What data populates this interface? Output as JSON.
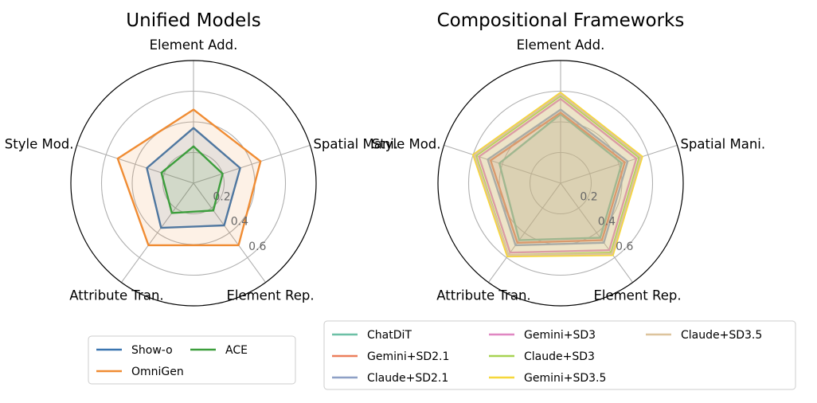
{
  "chart_data": [
    {
      "type": "radar",
      "title": "Unified Models",
      "axes": [
        "Element Add.",
        "Spatial Mani.",
        "Element Rep.",
        "Attribute Tran.",
        "Style Mod."
      ],
      "rlim": [
        0,
        0.8
      ],
      "rticks": [
        0.2,
        0.4,
        0.6
      ],
      "rtick_labels": [
        "0.2",
        "0.4",
        "0.6"
      ],
      "grid": true,
      "legend_position": "bottom",
      "series": [
        {
          "name": "Show-o",
          "color": "#3a75b0",
          "values": [
            0.36,
            0.32,
            0.34,
            0.36,
            0.32
          ]
        },
        {
          "name": "OmniGen",
          "color": "#f08c33",
          "values": [
            0.48,
            0.46,
            0.5,
            0.5,
            0.52
          ]
        },
        {
          "name": "ACE",
          "color": "#3c9e3c",
          "values": [
            0.24,
            0.2,
            0.22,
            0.24,
            0.22
          ]
        }
      ],
      "legend_order": [
        "Show-o",
        "OmniGen",
        "ACE"
      ]
    },
    {
      "type": "radar",
      "title": "Compositional Frameworks",
      "axes": [
        "Element Add.",
        "Spatial Mani.",
        "Element Rep.",
        "Attribute Tran.",
        "Style Mod."
      ],
      "rlim": [
        0,
        0.8
      ],
      "rticks": [
        0.2,
        0.4,
        0.6
      ],
      "rtick_labels": [
        "0.2",
        "0.4",
        "0.6"
      ],
      "grid": true,
      "legend_position": "bottom",
      "series": [
        {
          "name": "ChatDiT",
          "color": "#6cc0a6",
          "values": [
            0.45,
            0.42,
            0.44,
            0.46,
            0.42
          ]
        },
        {
          "name": "Gemini+SD2.1",
          "color": "#ec7f5b",
          "values": [
            0.46,
            0.44,
            0.46,
            0.48,
            0.48
          ]
        },
        {
          "name": "Claude+SD2.1",
          "color": "#8ea0c6",
          "values": [
            0.48,
            0.46,
            0.48,
            0.5,
            0.5
          ]
        },
        {
          "name": "Gemini+SD3",
          "color": "#e087c2",
          "values": [
            0.55,
            0.52,
            0.54,
            0.56,
            0.56
          ]
        },
        {
          "name": "Claude+SD3",
          "color": "#a7d352",
          "values": [
            0.57,
            0.54,
            0.56,
            0.58,
            0.58
          ]
        },
        {
          "name": "Gemini+SD3.5",
          "color": "#f6d73a",
          "values": [
            0.59,
            0.56,
            0.58,
            0.59,
            0.6
          ]
        },
        {
          "name": "Claude+SD3.5",
          "color": "#ddc49d",
          "values": [
            0.58,
            0.55,
            0.57,
            0.58,
            0.59
          ]
        }
      ],
      "legend_order": [
        "ChatDiT",
        "Gemini+SD2.1",
        "Claude+SD2.1",
        "Gemini+SD3",
        "Claude+SD3",
        "Gemini+SD3.5",
        "Claude+SD3.5"
      ]
    }
  ]
}
